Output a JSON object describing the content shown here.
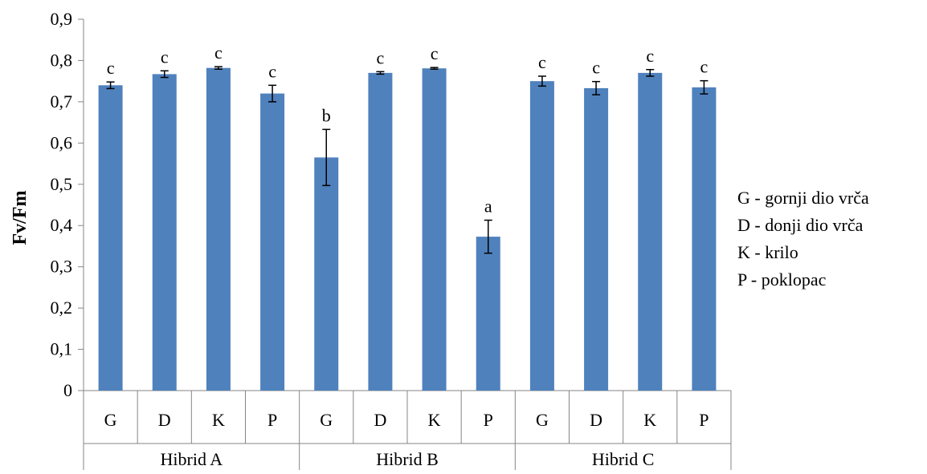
{
  "chart_data": {
    "type": "bar",
    "ylabel": "Fv/Fm",
    "ylim": [
      0,
      0.9
    ],
    "yticks": [
      "0",
      "0,1",
      "0,2",
      "0,3",
      "0,4",
      "0,5",
      "0,6",
      "0,7",
      "0,8",
      "0,9"
    ],
    "groups": [
      {
        "label": "Hibrid A",
        "bars": [
          {
            "category": "G",
            "value": 0.74,
            "error": 0.008,
            "sig": "c"
          },
          {
            "category": "D",
            "value": 0.767,
            "error": 0.008,
            "sig": "c"
          },
          {
            "category": "K",
            "value": 0.782,
            "error": 0.003,
            "sig": "c"
          },
          {
            "category": "P",
            "value": 0.72,
            "error": 0.02,
            "sig": "c"
          }
        ]
      },
      {
        "label": "Hibrid B",
        "bars": [
          {
            "category": "G",
            "value": 0.565,
            "error": 0.068,
            "sig": "b"
          },
          {
            "category": "D",
            "value": 0.77,
            "error": 0.003,
            "sig": "c"
          },
          {
            "category": "K",
            "value": 0.781,
            "error": 0.002,
            "sig": "c"
          },
          {
            "category": "P",
            "value": 0.373,
            "error": 0.04,
            "sig": "a"
          }
        ]
      },
      {
        "label": "Hibrid C",
        "bars": [
          {
            "category": "G",
            "value": 0.75,
            "error": 0.012,
            "sig": "c"
          },
          {
            "category": "D",
            "value": 0.733,
            "error": 0.016,
            "sig": "c"
          },
          {
            "category": "K",
            "value": 0.77,
            "error": 0.008,
            "sig": "c"
          },
          {
            "category": "P",
            "value": 0.735,
            "error": 0.016,
            "sig": "c"
          }
        ]
      }
    ],
    "legend": [
      "G - gornji dio vrča",
      "D - donji dio vrča",
      "K - krilo",
      "P - poklopac"
    ],
    "legend_position": "right",
    "bar_color": "#4F81BD",
    "grid": false
  }
}
